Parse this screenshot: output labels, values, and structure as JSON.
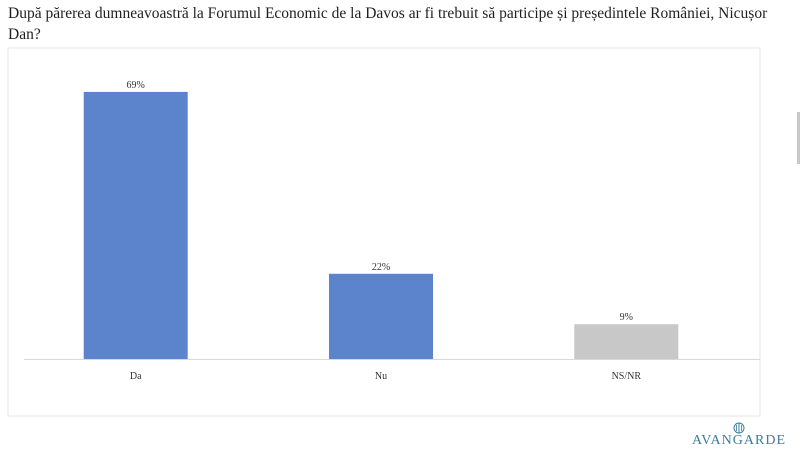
{
  "chart_data": {
    "type": "bar",
    "title": "După părerea dumneavoastră la Forumul Economic de la Davos ar fi trebuit să participe și președintele României, Nicușor Dan?",
    "categories": [
      "Da",
      "Nu",
      "NS/NR"
    ],
    "values": [
      69,
      22,
      9
    ],
    "value_labels": [
      "69%",
      "22%",
      "9%"
    ],
    "colors": [
      "#5b84cc",
      "#5b84cc",
      "#c8c8c8"
    ],
    "ylim": [
      0,
      70
    ],
    "grid": false,
    "legend": "none"
  },
  "brand": {
    "logo_text": "AVANGARDE",
    "color": "#3a7da0"
  }
}
